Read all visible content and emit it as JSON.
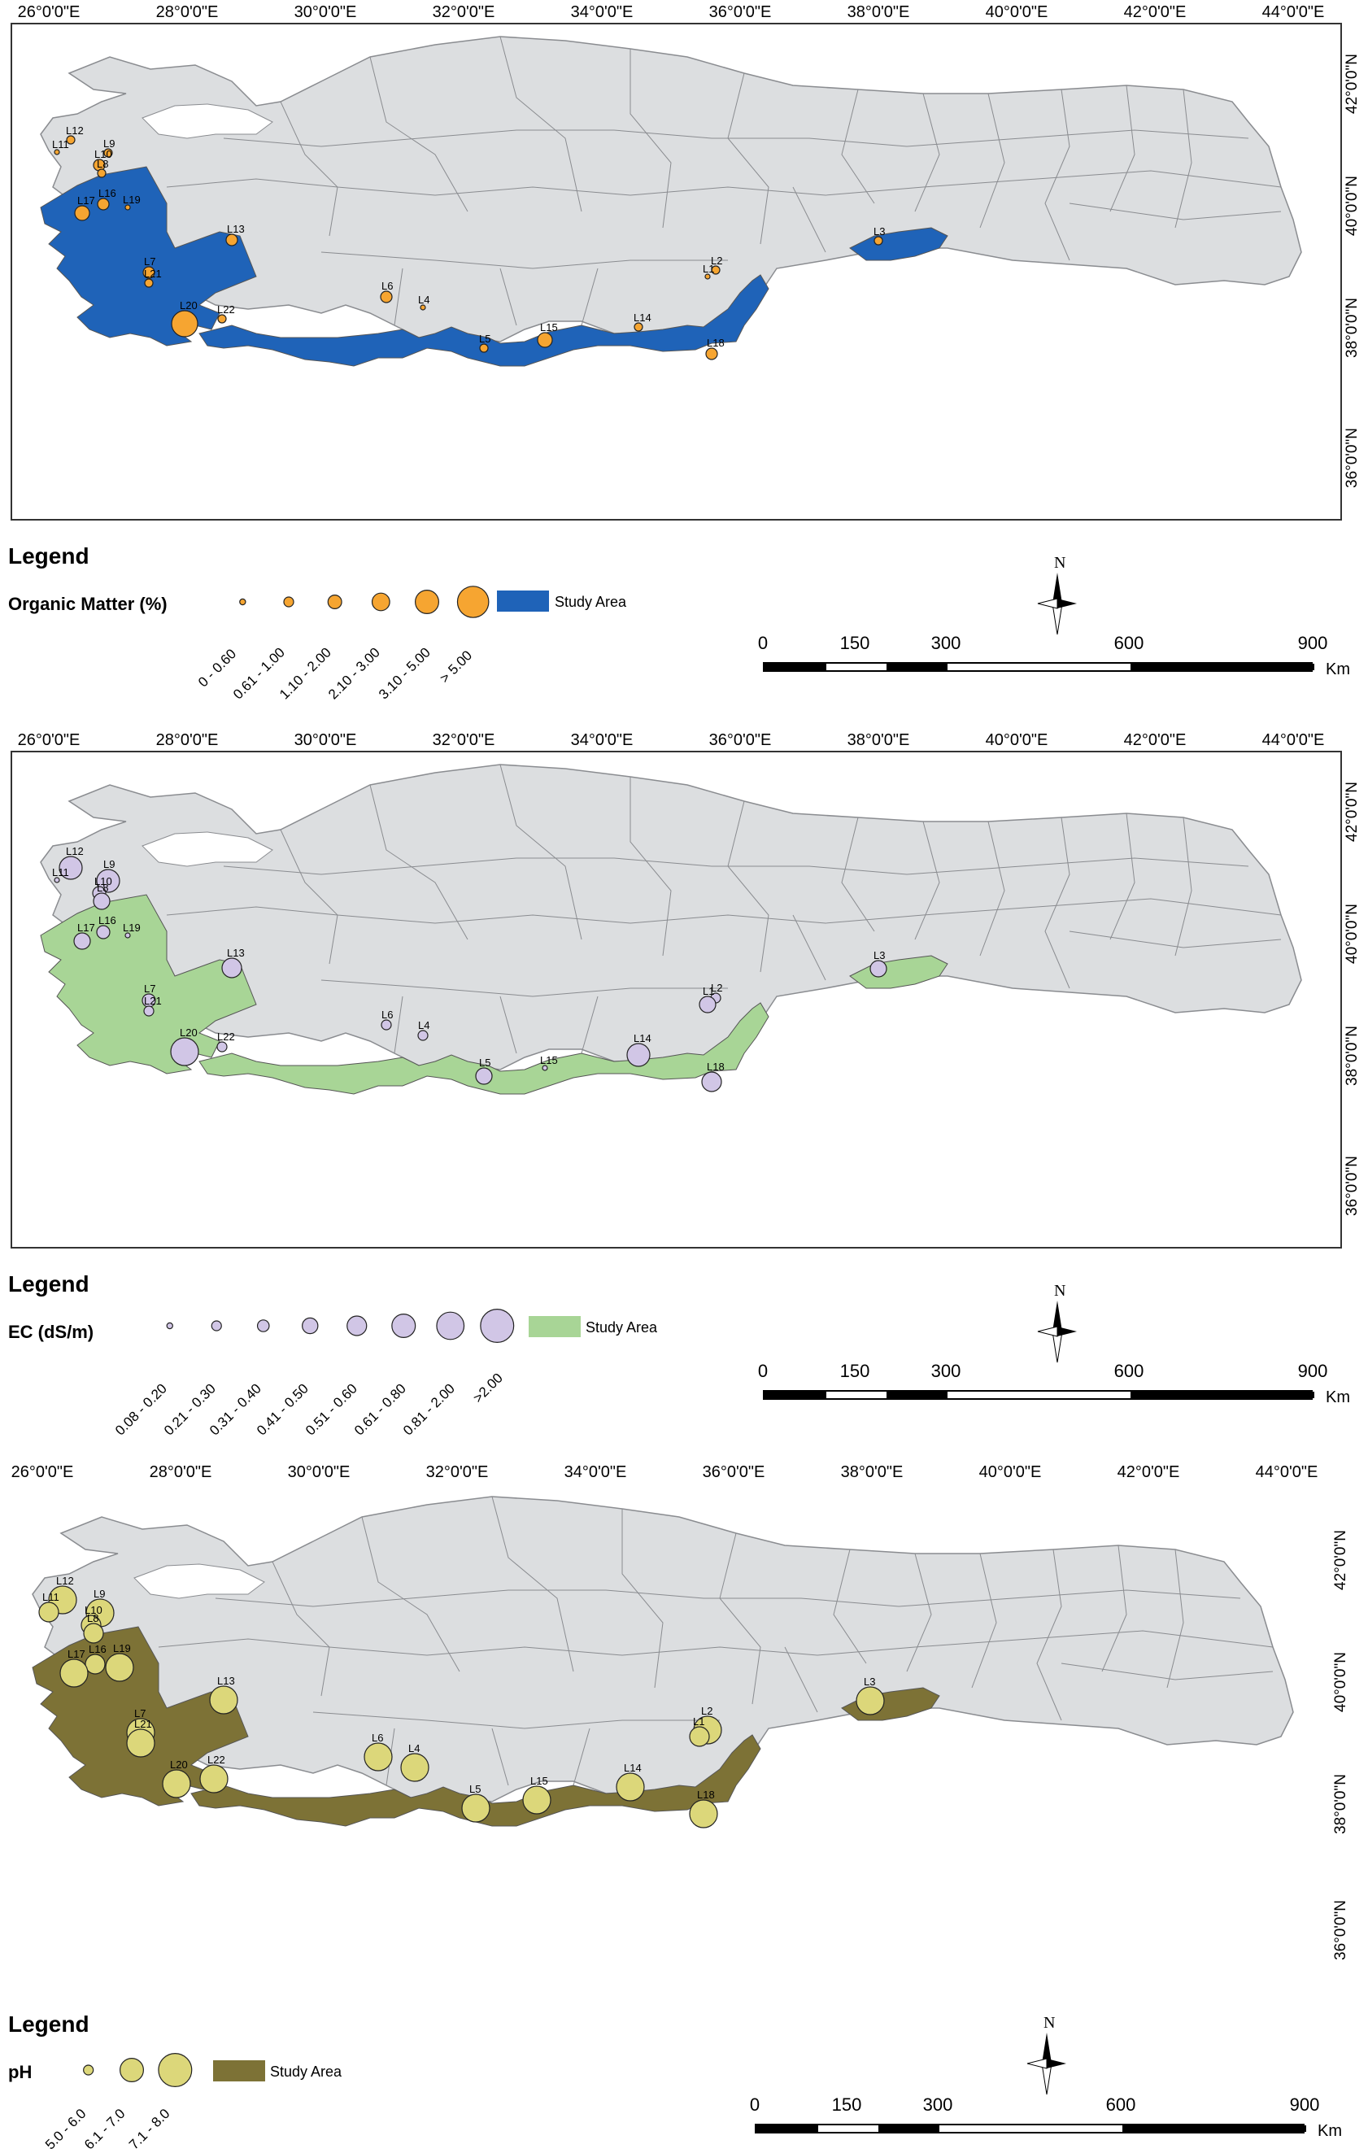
{
  "longitude_labels": [
    "26°0'0\"E",
    "28°0'0\"E",
    "30°0'0\"E",
    "32°0'0\"E",
    "34°0'0\"E",
    "36°0'0\"E",
    "38°0'0\"E",
    "40°0'0\"E",
    "42°0'0\"E",
    "44°0'0\"E"
  ],
  "latitude_labels": [
    "42°0'0\"N",
    "40°0'0\"N",
    "38°0'0\"N",
    "36°0'0\"N"
  ],
  "colors": {
    "land": "#dcdee0",
    "border": "#8a8c90",
    "water": "#ffffff",
    "om_area": "#1f63b8",
    "om_point": "#f6a531",
    "ec_area": "#a8d596",
    "ec_point": "#d1c6e6",
    "ph_area": "#7d7236",
    "ph_point": "#dcd77a"
  },
  "legend_title": "Legend",
  "study_area_label": "Study Area",
  "north_label": "N",
  "scale": {
    "ticks": [
      "0",
      "150",
      "300",
      "600",
      "900"
    ],
    "unit": "Km"
  },
  "panels": [
    {
      "id": "om",
      "variable": "Organic Matter (%)",
      "classes": [
        "0 - 0.60",
        "0.61 - 1.00",
        "1.10 - 2.00",
        "2.10 - 3.00",
        "3.10 - 5.00",
        "> 5.00"
      ],
      "samples": [
        {
          "label": "L12",
          "cls": 1
        },
        {
          "label": "L11",
          "cls": 0
        },
        {
          "label": "L9",
          "cls": 1
        },
        {
          "label": "L10",
          "cls": 2
        },
        {
          "label": "L8",
          "cls": 1
        },
        {
          "label": "L16",
          "cls": 2
        },
        {
          "label": "L17",
          "cls": 3
        },
        {
          "label": "L19",
          "cls": 0
        },
        {
          "label": "L13",
          "cls": 2
        },
        {
          "label": "L7",
          "cls": 2
        },
        {
          "label": "L21",
          "cls": 1
        },
        {
          "label": "L20",
          "cls": 5
        },
        {
          "label": "L22",
          "cls": 1
        },
        {
          "label": "L6",
          "cls": 2
        },
        {
          "label": "L4",
          "cls": 0
        },
        {
          "label": "L5",
          "cls": 1
        },
        {
          "label": "L15",
          "cls": 3
        },
        {
          "label": "L14",
          "cls": 1
        },
        {
          "label": "L2",
          "cls": 1
        },
        {
          "label": "L1",
          "cls": 0
        },
        {
          "label": "L18",
          "cls": 2
        },
        {
          "label": "L3",
          "cls": 1
        }
      ]
    },
    {
      "id": "ec",
      "variable": "EC (dS/m)",
      "classes": [
        "0.08 - 0.20",
        "0.21 - 0.30",
        "0.31 - 0.40",
        "0.41 - 0.50",
        "0.51 - 0.60",
        "0.61 - 0.80",
        "0.81 - 2.00",
        ">2.00"
      ],
      "samples": [
        {
          "label": "L12",
          "cls": 6
        },
        {
          "label": "L11",
          "cls": 0
        },
        {
          "label": "L9",
          "cls": 6
        },
        {
          "label": "L10",
          "cls": 3
        },
        {
          "label": "L8",
          "cls": 4
        },
        {
          "label": "L16",
          "cls": 3
        },
        {
          "label": "L17",
          "cls": 4
        },
        {
          "label": "L19",
          "cls": 0
        },
        {
          "label": "L13",
          "cls": 5
        },
        {
          "label": "L7",
          "cls": 3
        },
        {
          "label": "L21",
          "cls": 2
        },
        {
          "label": "L20",
          "cls": 7
        },
        {
          "label": "L22",
          "cls": 2
        },
        {
          "label": "L6",
          "cls": 2
        },
        {
          "label": "L4",
          "cls": 2
        },
        {
          "label": "L5",
          "cls": 4
        },
        {
          "label": "L15",
          "cls": 0
        },
        {
          "label": "L14",
          "cls": 6
        },
        {
          "label": "L2",
          "cls": 2
        },
        {
          "label": "L1",
          "cls": 4
        },
        {
          "label": "L18",
          "cls": 5
        },
        {
          "label": "L3",
          "cls": 4
        }
      ]
    },
    {
      "id": "ph",
      "variable": "pH",
      "classes": [
        "5.0 - 6.0",
        "6.1 - 7.0",
        "7.1 - 8.0"
      ],
      "samples": [
        {
          "label": "L12",
          "cls": 2
        },
        {
          "label": "L11",
          "cls": 1
        },
        {
          "label": "L9",
          "cls": 2
        },
        {
          "label": "L10",
          "cls": 1
        },
        {
          "label": "L8",
          "cls": 1
        },
        {
          "label": "L16",
          "cls": 1
        },
        {
          "label": "L17",
          "cls": 2
        },
        {
          "label": "L19",
          "cls": 2
        },
        {
          "label": "L13",
          "cls": 2
        },
        {
          "label": "L7",
          "cls": 2
        },
        {
          "label": "L21",
          "cls": 2
        },
        {
          "label": "L20",
          "cls": 2
        },
        {
          "label": "L22",
          "cls": 2
        },
        {
          "label": "L6",
          "cls": 2
        },
        {
          "label": "L4",
          "cls": 2
        },
        {
          "label": "L5",
          "cls": 2
        },
        {
          "label": "L15",
          "cls": 2
        },
        {
          "label": "L14",
          "cls": 2
        },
        {
          "label": "L2",
          "cls": 2
        },
        {
          "label": "L1",
          "cls": 1
        },
        {
          "label": "L18",
          "cls": 2
        },
        {
          "label": "L3",
          "cls": 2
        }
      ]
    }
  ]
}
